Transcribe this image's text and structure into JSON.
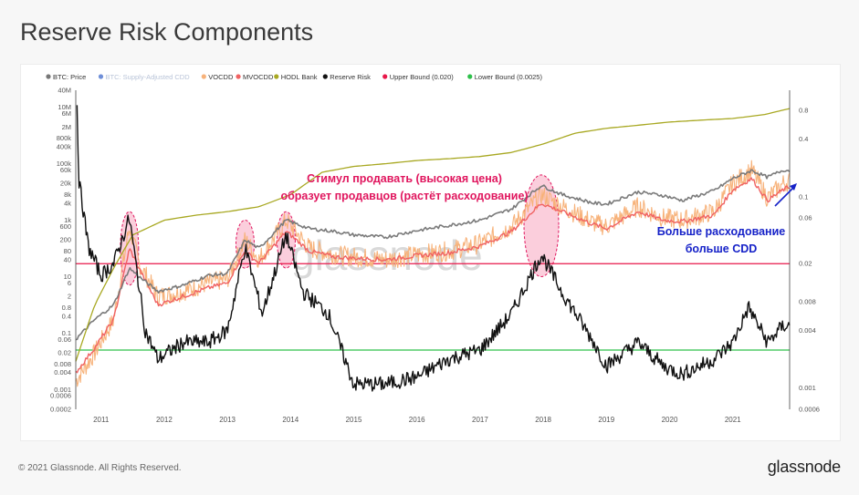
{
  "title": "Reserve Risk Components",
  "footer": {
    "copyright": "© 2021 Glassnode. All Rights Reserved.",
    "logo": "glassnode"
  },
  "watermark": "glassnode",
  "chart_data": {
    "type": "line",
    "legend_position": "top-left",
    "grid": false,
    "x_range": [
      2010.6,
      2021.9
    ],
    "x_ticks": [
      "2011",
      "2012",
      "2013",
      "2014",
      "2015",
      "2016",
      "2017",
      "2018",
      "2019",
      "2020",
      "2021"
    ],
    "y_left": {
      "scale": "log",
      "range": [
        0.0002,
        40000000
      ],
      "ticks": [
        "40M",
        "10M",
        "6M",
        "2M",
        "800k",
        "400k",
        "100k",
        "60k",
        "20k",
        "8k",
        "4k",
        "1k",
        "600",
        "200",
        "80",
        "40",
        "10",
        "6",
        "2",
        "0.8",
        "0.4",
        "0.1",
        "0.06",
        "0.02",
        "0.008",
        "0.004",
        "0.001",
        "0.0006",
        "0.0002"
      ],
      "tick_values": [
        40000000,
        10000000,
        6000000,
        2000000,
        800000,
        400000,
        100000,
        60000,
        20000,
        8000,
        4000,
        1000,
        600,
        200,
        80,
        40,
        10,
        6,
        2,
        0.8,
        0.4,
        0.1,
        0.06,
        0.02,
        0.008,
        0.004,
        0.001,
        0.0006,
        0.0002
      ]
    },
    "y_right": {
      "scale": "log",
      "range": [
        0.0006,
        1.3
      ],
      "ticks": [
        "0.8",
        "0.4",
        "0.1",
        "0.06",
        "0.02",
        "0.008",
        "0.004",
        "0.001",
        "0.0006"
      ],
      "tick_values": [
        0.8,
        0.4,
        0.1,
        0.06,
        0.02,
        0.008,
        0.004,
        0.001,
        0.0006
      ]
    },
    "legend": [
      {
        "label": "BTC: Price",
        "color": "#777777",
        "muted": false
      },
      {
        "label": "BTC: Supply-Adjusted CDD",
        "color": "#6f8fd8",
        "muted": true
      },
      {
        "label": "VOCDD",
        "color": "#f7b27a",
        "muted": false
      },
      {
        "label": "MVOCDD",
        "color": "#f06262",
        "muted": false
      },
      {
        "label": "HODL Bank",
        "color": "#a8a822",
        "muted": false
      },
      {
        "label": "Reserve Risk",
        "color": "#111111",
        "muted": false
      },
      {
        "label": "Upper Bound (0.020)",
        "color": "#e8174a",
        "muted": false
      },
      {
        "label": "Lower Bound (0.0025)",
        "color": "#2ec04a",
        "muted": false
      }
    ],
    "bounds": {
      "upper": 0.02,
      "lower": 0.0025
    },
    "series": [
      {
        "name": "BTC: Price",
        "axis": "left",
        "color": "#7a7a7a",
        "x": [
          2010.6,
          2010.9,
          2011.2,
          2011.45,
          2011.6,
          2011.9,
          2012.3,
          2012.7,
          2013.0,
          2013.28,
          2013.5,
          2013.93,
          2014.3,
          2014.7,
          2015.0,
          2015.5,
          2016.0,
          2016.5,
          2017.0,
          2017.5,
          2017.97,
          2018.3,
          2018.8,
          2019.0,
          2019.5,
          2019.9,
          2020.2,
          2020.7,
          2021.0,
          2021.3,
          2021.55,
          2021.8,
          2021.9
        ],
        "y": [
          0.06,
          0.3,
          1,
          20,
          10,
          3,
          5,
          11,
          13,
          200,
          100,
          1000,
          500,
          400,
          300,
          250,
          430,
          650,
          1000,
          2500,
          17000,
          8000,
          4000,
          3700,
          10000,
          7500,
          5000,
          11000,
          30000,
          58000,
          33000,
          60000,
          57000
        ]
      },
      {
        "name": "VOCDD",
        "axis": "left",
        "color": "#f7b27a",
        "x": [
          2010.6,
          2010.9,
          2011.2,
          2011.45,
          2011.6,
          2011.9,
          2012.3,
          2012.7,
          2013.0,
          2013.28,
          2013.5,
          2013.93,
          2014.3,
          2014.7,
          2015.0,
          2015.5,
          2016.0,
          2016.5,
          2017.0,
          2017.5,
          2017.97,
          2018.3,
          2018.8,
          2019.0,
          2019.5,
          2019.9,
          2020.2,
          2020.7,
          2021.0,
          2021.3,
          2021.55,
          2021.8,
          2021.9
        ],
        "y": [
          0.002,
          0.02,
          0.3,
          600,
          30,
          2,
          3,
          6,
          8,
          200,
          40,
          1000,
          100,
          60,
          50,
          40,
          60,
          80,
          150,
          600,
          8000,
          3000,
          800,
          600,
          3000,
          1200,
          1000,
          2000,
          20000,
          60000,
          6000,
          20000,
          25000
        ]
      },
      {
        "name": "MVOCDD",
        "axis": "left",
        "color": "#f06262",
        "x": [
          2010.6,
          2010.9,
          2011.2,
          2011.45,
          2011.6,
          2011.9,
          2012.3,
          2012.7,
          2013.0,
          2013.28,
          2013.5,
          2013.93,
          2014.3,
          2014.7,
          2015.0,
          2015.5,
          2016.0,
          2016.5,
          2017.0,
          2017.5,
          2017.97,
          2018.3,
          2018.8,
          2019.0,
          2019.5,
          2019.9,
          2020.2,
          2020.7,
          2021.0,
          2021.3,
          2021.55,
          2021.8,
          2021.9
        ],
        "y": [
          0.004,
          0.03,
          0.3,
          100,
          20,
          1,
          2,
          4,
          6,
          80,
          30,
          400,
          80,
          50,
          45,
          40,
          55,
          70,
          120,
          400,
          4000,
          2000,
          700,
          500,
          2000,
          1000,
          900,
          1500,
          12000,
          30000,
          5000,
          12000,
          15000
        ]
      },
      {
        "name": "HODL Bank",
        "axis": "left",
        "color": "#a8a822",
        "x": [
          2010.6,
          2010.9,
          2011.2,
          2011.5,
          2012.0,
          2012.5,
          2013.0,
          2013.5,
          2014.0,
          2014.5,
          2015.0,
          2015.5,
          2016.0,
          2016.5,
          2017.0,
          2017.5,
          2018.0,
          2018.5,
          2019.0,
          2019.5,
          2020.0,
          2020.5,
          2021.0,
          2021.5,
          2021.9
        ],
        "y": [
          0.01,
          1,
          20,
          300,
          1000,
          1500,
          2000,
          3000,
          8000,
          50000,
          80000,
          100000,
          130000,
          150000,
          180000,
          250000,
          500000,
          1200000,
          1800000,
          2300000,
          3000000,
          3500000,
          4000000,
          5500000,
          9000000
        ]
      },
      {
        "name": "Reserve Risk",
        "axis": "right",
        "color": "#111111",
        "x": [
          2010.62,
          2010.65,
          2010.8,
          2011.0,
          2011.2,
          2011.45,
          2011.7,
          2011.9,
          2012.3,
          2012.7,
          2013.0,
          2013.28,
          2013.55,
          2013.93,
          2014.2,
          2014.6,
          2015.0,
          2015.5,
          2016.0,
          2016.5,
          2017.0,
          2017.5,
          2017.97,
          2018.3,
          2018.8,
          2019.0,
          2019.5,
          2019.9,
          2020.2,
          2020.7,
          2021.0,
          2021.25,
          2021.55,
          2021.8,
          2021.9
        ],
        "y": [
          0.9,
          0.15,
          0.03,
          0.015,
          0.02,
          0.06,
          0.004,
          0.002,
          0.003,
          0.003,
          0.004,
          0.03,
          0.006,
          0.04,
          0.01,
          0.006,
          0.0011,
          0.0011,
          0.0013,
          0.002,
          0.0025,
          0.006,
          0.025,
          0.01,
          0.003,
          0.0017,
          0.003,
          0.0017,
          0.0014,
          0.002,
          0.003,
          0.007,
          0.003,
          0.0045,
          0.0045
        ]
      }
    ],
    "highlights": [
      {
        "x": 2011.45,
        "y_low": 5,
        "y_high": 2000
      },
      {
        "x": 2013.28,
        "y_low": 20,
        "y_high": 1000
      },
      {
        "x": 2013.93,
        "y_low": 20,
        "y_high": 2000
      },
      {
        "x": 2017.97,
        "y_low": 10,
        "y_high": 40000
      }
    ],
    "annotations": [
      {
        "text_lines": [
          "Стимул продавать (высокая цена)",
          "образует продавцов (растёт расходование)"
        ],
        "color": "#e0165e"
      },
      {
        "text_lines": [
          "Больше расходование",
          "больше CDD"
        ],
        "color": "#1622c8"
      }
    ]
  }
}
